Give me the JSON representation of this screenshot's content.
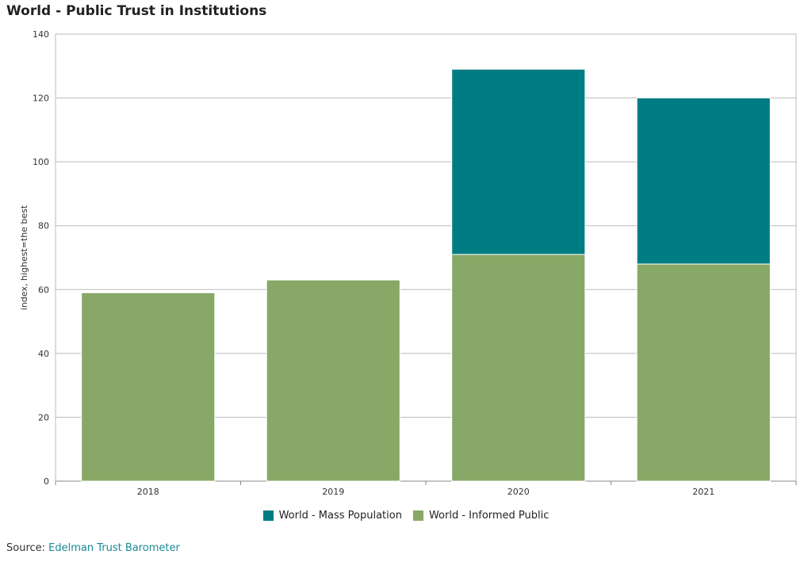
{
  "chart_data": {
    "type": "bar",
    "stacked": true,
    "title": "World - Public Trust in Institutions",
    "xlabel": "",
    "ylabel": "index, highest=the best",
    "categories": [
      "2018",
      "2019",
      "2020",
      "2021"
    ],
    "ylim": [
      0,
      140
    ],
    "yticks": [
      0,
      20,
      40,
      60,
      80,
      100,
      120,
      140
    ],
    "grid": true,
    "legend_position": "bottom",
    "series": [
      {
        "name": "World - Informed Public",
        "color": "#87a866",
        "values": [
          59,
          63,
          71,
          68
        ]
      },
      {
        "name": "World - Mass Population",
        "color": "#007d82",
        "values": [
          0,
          0,
          58,
          52
        ]
      }
    ],
    "legend_order": [
      "World - Mass Population",
      "World - Informed Public"
    ]
  },
  "source": {
    "prefix": "Source: ",
    "link_text": "Edelman Trust Barometer"
  }
}
